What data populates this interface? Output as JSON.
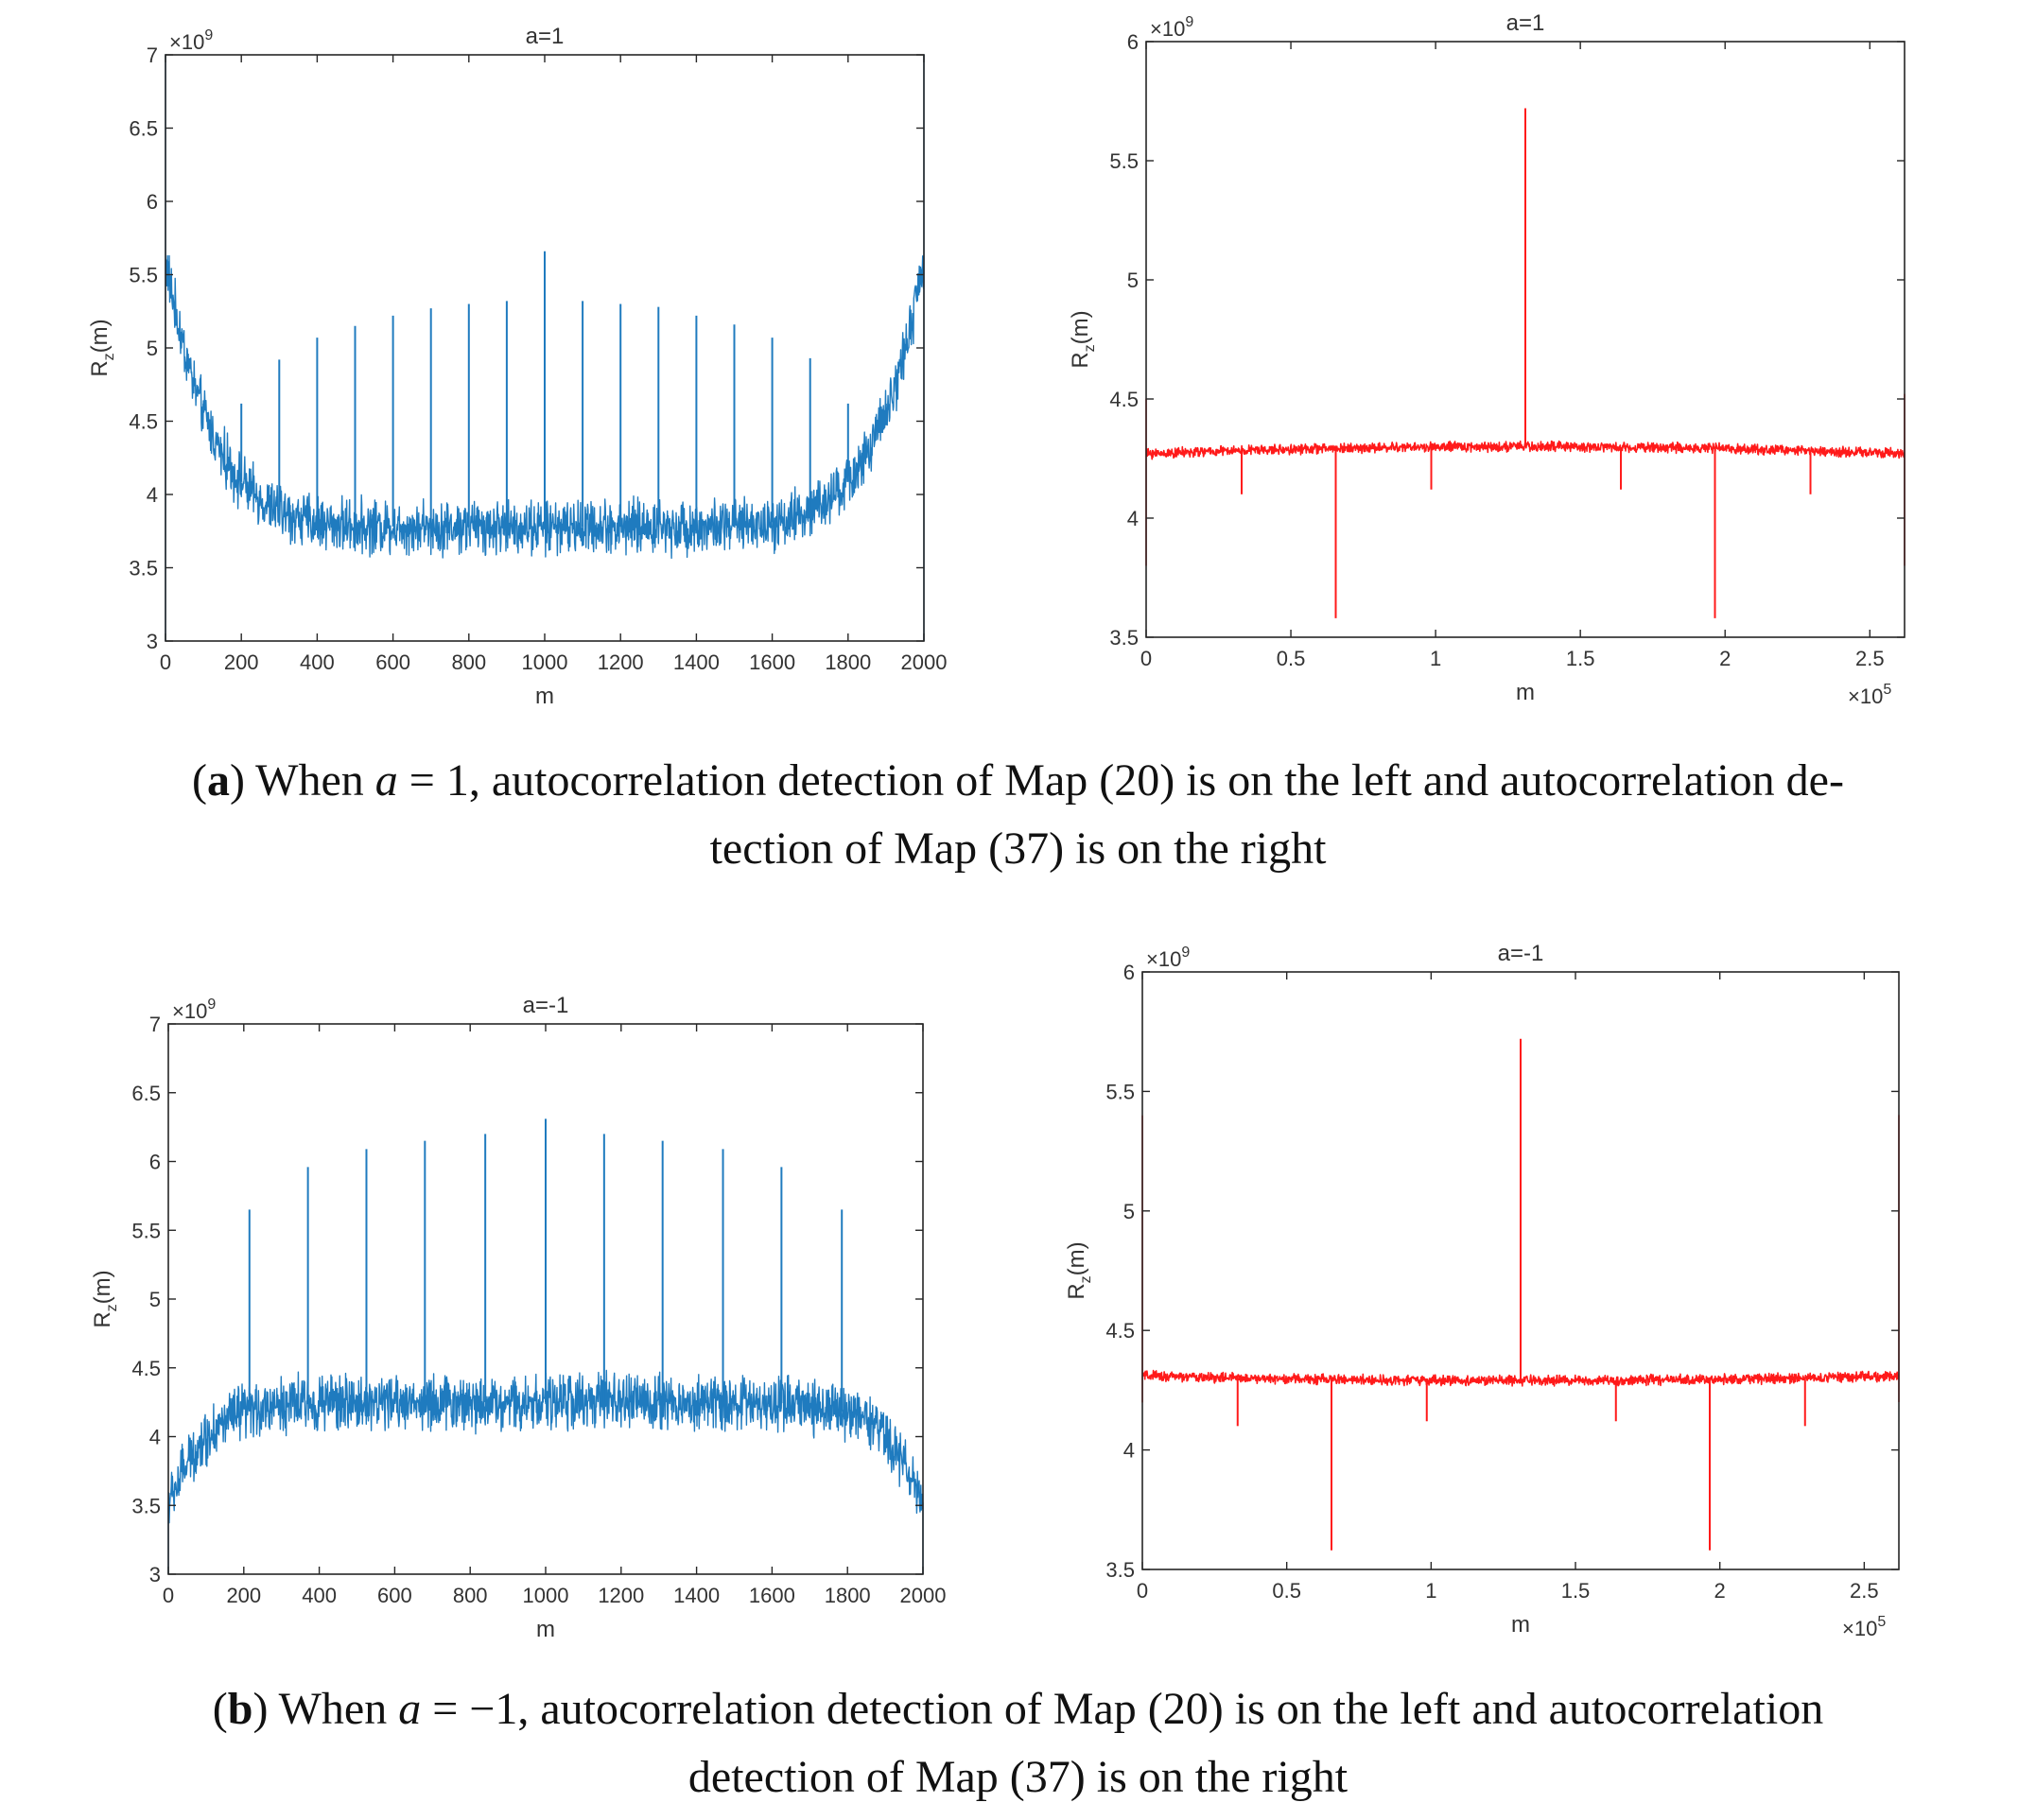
{
  "colors": {
    "blue": "#1f7bbf",
    "red": "#ff1a1a",
    "axis": "#262626"
  },
  "chart_data": [
    {
      "id": "a-left",
      "type": "line",
      "title": "a=1",
      "xlabel": "m",
      "ylabel": "R_z(m)",
      "ylabel_main": "R",
      "ylabel_sub": "z",
      "ylabel_tail": "(m)",
      "xlim": [
        0,
        2000
      ],
      "ylim": [
        3,
        7
      ],
      "xticks": [
        0,
        200,
        400,
        600,
        800,
        1000,
        1200,
        1400,
        1600,
        1800,
        2000
      ],
      "xtick_labels": [
        "0",
        "200",
        "400",
        "600",
        "800",
        "1000",
        "1200",
        "1400",
        "1600",
        "1800",
        "2000"
      ],
      "yticks": [
        3,
        3.5,
        4,
        4.5,
        5,
        5.5,
        6,
        6.5,
        7
      ],
      "ytick_labels": [
        "3",
        "3.5",
        "4",
        "4.5",
        "5",
        "5.5",
        "6",
        "6.5",
        "7"
      ],
      "y_multiplier": "×10",
      "y_multiplier_exp": "9",
      "x_multiplier": "",
      "x_multiplier_exp": "",
      "color": "blue",
      "baseline": {
        "edge": 5.6,
        "center": 3.78,
        "power": 8,
        "noise": 0.22
      },
      "spikes": [
        [
          100,
          4.62
        ],
        [
          200,
          4.62
        ],
        [
          300,
          4.92
        ],
        [
          400,
          5.07
        ],
        [
          500,
          5.15
        ],
        [
          600,
          5.22
        ],
        [
          700,
          5.27
        ],
        [
          800,
          5.3
        ],
        [
          900,
          5.32
        ],
        [
          1000,
          5.66
        ],
        [
          1100,
          5.32
        ],
        [
          1200,
          5.3
        ],
        [
          1300,
          5.28
        ],
        [
          1400,
          5.22
        ],
        [
          1500,
          5.16
        ],
        [
          1600,
          5.07
        ],
        [
          1700,
          4.93
        ],
        [
          1800,
          4.62
        ],
        [
          1900,
          4.62
        ]
      ],
      "endpoints": [
        [
          0,
          3.0
        ],
        [
          0,
          7.0
        ],
        [
          2000,
          7.0
        ],
        [
          2000,
          3.0
        ]
      ]
    },
    {
      "id": "a-right",
      "type": "line",
      "title": "a=1",
      "xlabel": "m",
      "ylabel": "R_z(m)",
      "ylabel_main": "R",
      "ylabel_sub": "z",
      "ylabel_tail": "(m)",
      "xlim": [
        0,
        2.62
      ],
      "ylim": [
        3.5,
        6
      ],
      "xticks": [
        0,
        0.5,
        1,
        1.5,
        2,
        2.5
      ],
      "xtick_labels": [
        "0",
        "0.5",
        "1",
        "1.5",
        "2",
        "2.5"
      ],
      "yticks": [
        3.5,
        4,
        4.5,
        5,
        5.5,
        6
      ],
      "ytick_labels": [
        "3.5",
        "4",
        "4.5",
        "5",
        "5.5",
        "6"
      ],
      "y_multiplier": "×10",
      "y_multiplier_exp": "9",
      "x_multiplier": "×10",
      "x_multiplier_exp": "5",
      "color": "red",
      "baseline": {
        "edge": 4.27,
        "center": 4.3,
        "power": 2,
        "noise": 0.025
      },
      "spikes": [
        [
          1.31,
          5.72
        ],
        [
          0.33,
          4.1
        ],
        [
          0.655,
          3.58
        ],
        [
          0.985,
          4.12
        ],
        [
          1.64,
          4.12
        ],
        [
          1.965,
          3.58
        ],
        [
          2.295,
          4.1
        ]
      ],
      "endpoints": [
        [
          0,
          3.8
        ],
        [
          0,
          4.5
        ],
        [
          2.62,
          4.52
        ],
        [
          2.62,
          3.8
        ]
      ]
    },
    {
      "id": "b-left",
      "type": "line",
      "title": "a=-1",
      "xlabel": "m",
      "ylabel": "R_z(m)",
      "ylabel_main": "R",
      "ylabel_sub": "z",
      "ylabel_tail": "(m)",
      "xlim": [
        0,
        2000
      ],
      "ylim": [
        3,
        7
      ],
      "xticks": [
        0,
        200,
        400,
        600,
        800,
        1000,
        1200,
        1400,
        1600,
        1800,
        2000
      ],
      "xtick_labels": [
        "0",
        "200",
        "400",
        "600",
        "800",
        "1000",
        "1200",
        "1400",
        "1600",
        "1800",
        "2000"
      ],
      "yticks": [
        3,
        3.5,
        4,
        4.5,
        5,
        5.5,
        6,
        6.5,
        7
      ],
      "ytick_labels": [
        "3",
        "3.5",
        "4",
        "4.5",
        "5",
        "5.5",
        "6",
        "6.5",
        "7"
      ],
      "y_multiplier": "×10",
      "y_multiplier_exp": "9",
      "x_multiplier": "",
      "x_multiplier_exp": "",
      "color": "blue",
      "baseline": {
        "edge": 3.5,
        "center": 4.25,
        "power": 10,
        "noise": 0.24
      },
      "spikes": [
        [
          215,
          5.65
        ],
        [
          370,
          5.96
        ],
        [
          525,
          6.09
        ],
        [
          680,
          6.15
        ],
        [
          840,
          6.2
        ],
        [
          1000,
          6.31
        ],
        [
          1155,
          6.2
        ],
        [
          1310,
          6.15
        ],
        [
          1470,
          6.09
        ],
        [
          1625,
          5.96
        ],
        [
          1785,
          5.65
        ]
      ],
      "endpoints": [
        [
          0,
          3.0
        ],
        [
          2000,
          3.0
        ]
      ]
    },
    {
      "id": "b-right",
      "type": "line",
      "title": "a=-1",
      "xlabel": "m",
      "ylabel": "R_z(m)",
      "ylabel_main": "R",
      "ylabel_sub": "z",
      "ylabel_tail": "(m)",
      "xlim": [
        0,
        2.62
      ],
      "ylim": [
        3.5,
        6
      ],
      "xticks": [
        0,
        0.5,
        1,
        1.5,
        2,
        2.5
      ],
      "xtick_labels": [
        "0",
        "0.5",
        "1",
        "1.5",
        "2",
        "2.5"
      ],
      "yticks": [
        3.5,
        4,
        4.5,
        5,
        5.5,
        6
      ],
      "ytick_labels": [
        "3.5",
        "4",
        "4.5",
        "5",
        "5.5",
        "6"
      ],
      "y_multiplier": "×10",
      "y_multiplier_exp": "9",
      "x_multiplier": "×10",
      "x_multiplier_exp": "5",
      "color": "red",
      "baseline": {
        "edge": 4.31,
        "center": 4.29,
        "power": 2,
        "noise": 0.025
      },
      "spikes": [
        [
          1.31,
          5.72
        ],
        [
          0.33,
          4.1
        ],
        [
          0.655,
          3.58
        ],
        [
          0.985,
          4.12
        ],
        [
          1.64,
          4.12
        ],
        [
          1.965,
          3.58
        ],
        [
          2.295,
          4.1
        ]
      ],
      "endpoints": [
        [
          0,
          5.4
        ],
        [
          0,
          4.2
        ],
        [
          2.62,
          5.4
        ],
        [
          2.62,
          4.2
        ]
      ]
    }
  ],
  "captions": {
    "a": {
      "label": "a",
      "lead": " When ",
      "math": "a",
      "eq": " = 1",
      "line1": ", autocorrelation detection of Map (20) is on the left and autocorrelation de-",
      "line2": "tection of Map (37) is on the right"
    },
    "b": {
      "label": "b",
      "lead": " When ",
      "math": "a",
      "eq": " = −1",
      "line1": ", autocorrelation detection of Map (20) is on the left and autocorrelation",
      "line2": "detection of Map (37) is on the right"
    }
  }
}
